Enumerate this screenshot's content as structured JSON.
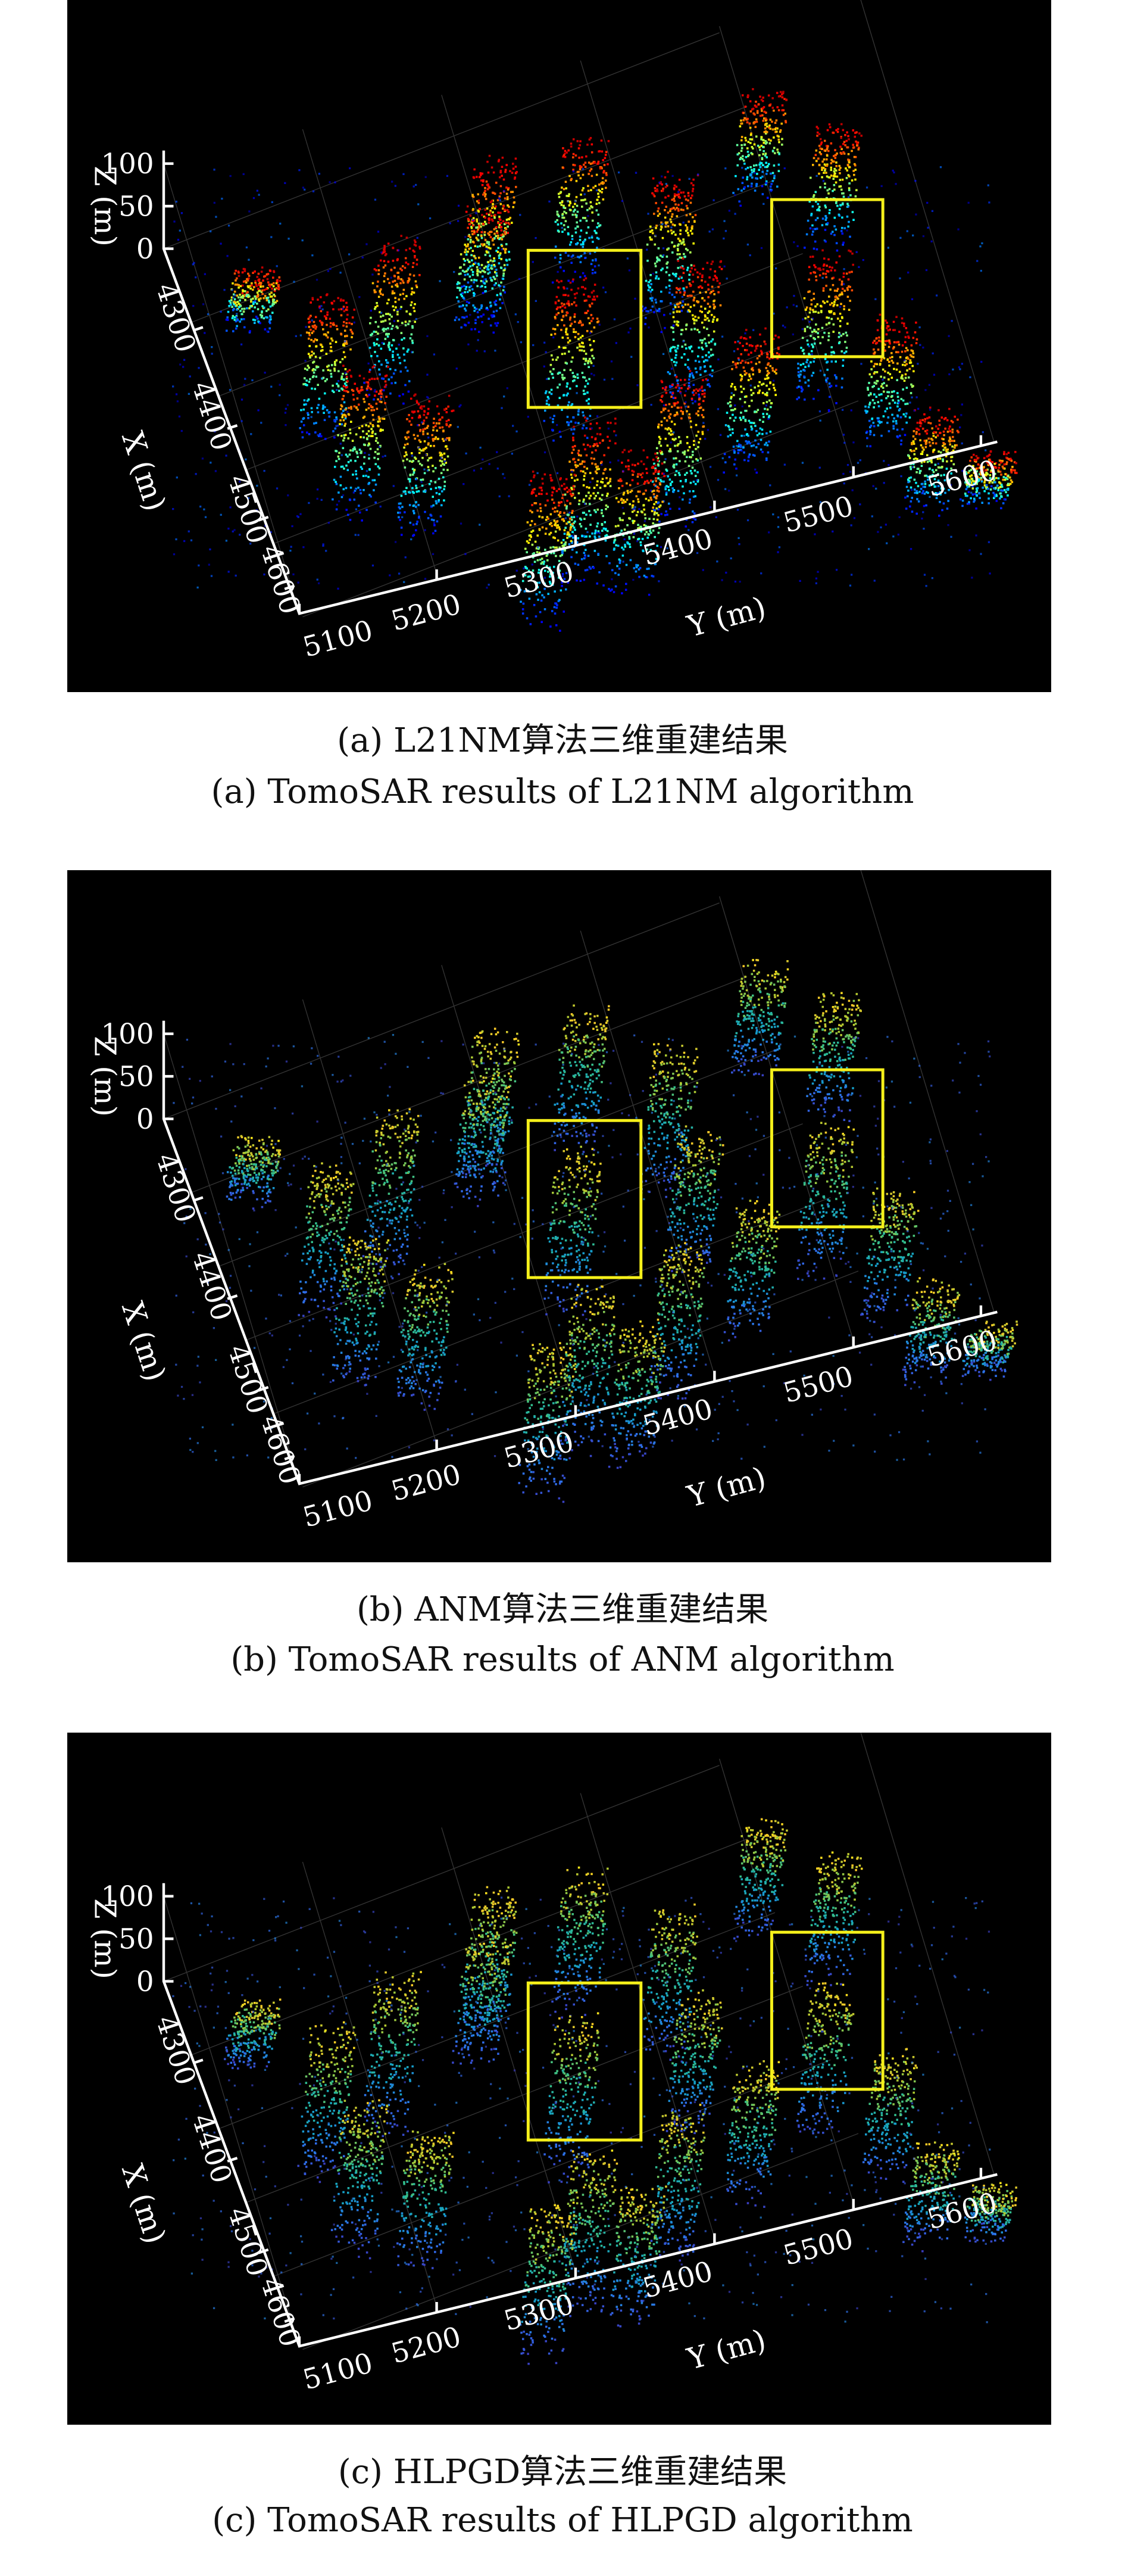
{
  "figure": {
    "panels": [
      {
        "caption_cn": "(a) L21NM算法三维重建结果",
        "caption_en": "(a) TomoSAR results of L21NM algorithm",
        "colormap": "jet",
        "axes": {
          "z_label": "Z (m)",
          "z_ticks": [
            "100",
            "50",
            "0"
          ],
          "x_label": "X (m)",
          "x_ticks": [
            "4300",
            "4400",
            "4500",
            "4600"
          ],
          "y_label": "Y (m)",
          "y_ticks": [
            "5100",
            "5200",
            "5300",
            "5400",
            "5500",
            "5600"
          ]
        },
        "highlight_color": "#f5f01a"
      },
      {
        "caption_cn": "(b) ANM算法三维重建结果",
        "caption_en": "(b) TomoSAR results of ANM algorithm",
        "colormap": "parula",
        "axes": {
          "z_label": "Z (m)",
          "z_ticks": [
            "100",
            "50",
            "0"
          ],
          "x_label": "X (m)",
          "x_ticks": [
            "4300",
            "4400",
            "4500",
            "4600"
          ],
          "y_label": "Y (m)",
          "y_ticks": [
            "5100",
            "5200",
            "5300",
            "5400",
            "5500",
            "5600"
          ]
        },
        "highlight_color": "#f5f01a"
      },
      {
        "caption_cn": "(c) HLPGD算法三维重建结果",
        "caption_en": "(c) TomoSAR results of HLPGD algorithm",
        "colormap": "parula",
        "axes": {
          "z_label": "Z (m)",
          "z_ticks": [
            "100",
            "50",
            "0"
          ],
          "x_label": "X (m)",
          "x_ticks": [
            "4300",
            "4400",
            "4500",
            "4600"
          ],
          "y_label": "Y (m)",
          "y_ticks": [
            "5100",
            "5200",
            "5300",
            "5400",
            "5500",
            "5600"
          ]
        },
        "highlight_color": "#f5f01a"
      }
    ]
  }
}
